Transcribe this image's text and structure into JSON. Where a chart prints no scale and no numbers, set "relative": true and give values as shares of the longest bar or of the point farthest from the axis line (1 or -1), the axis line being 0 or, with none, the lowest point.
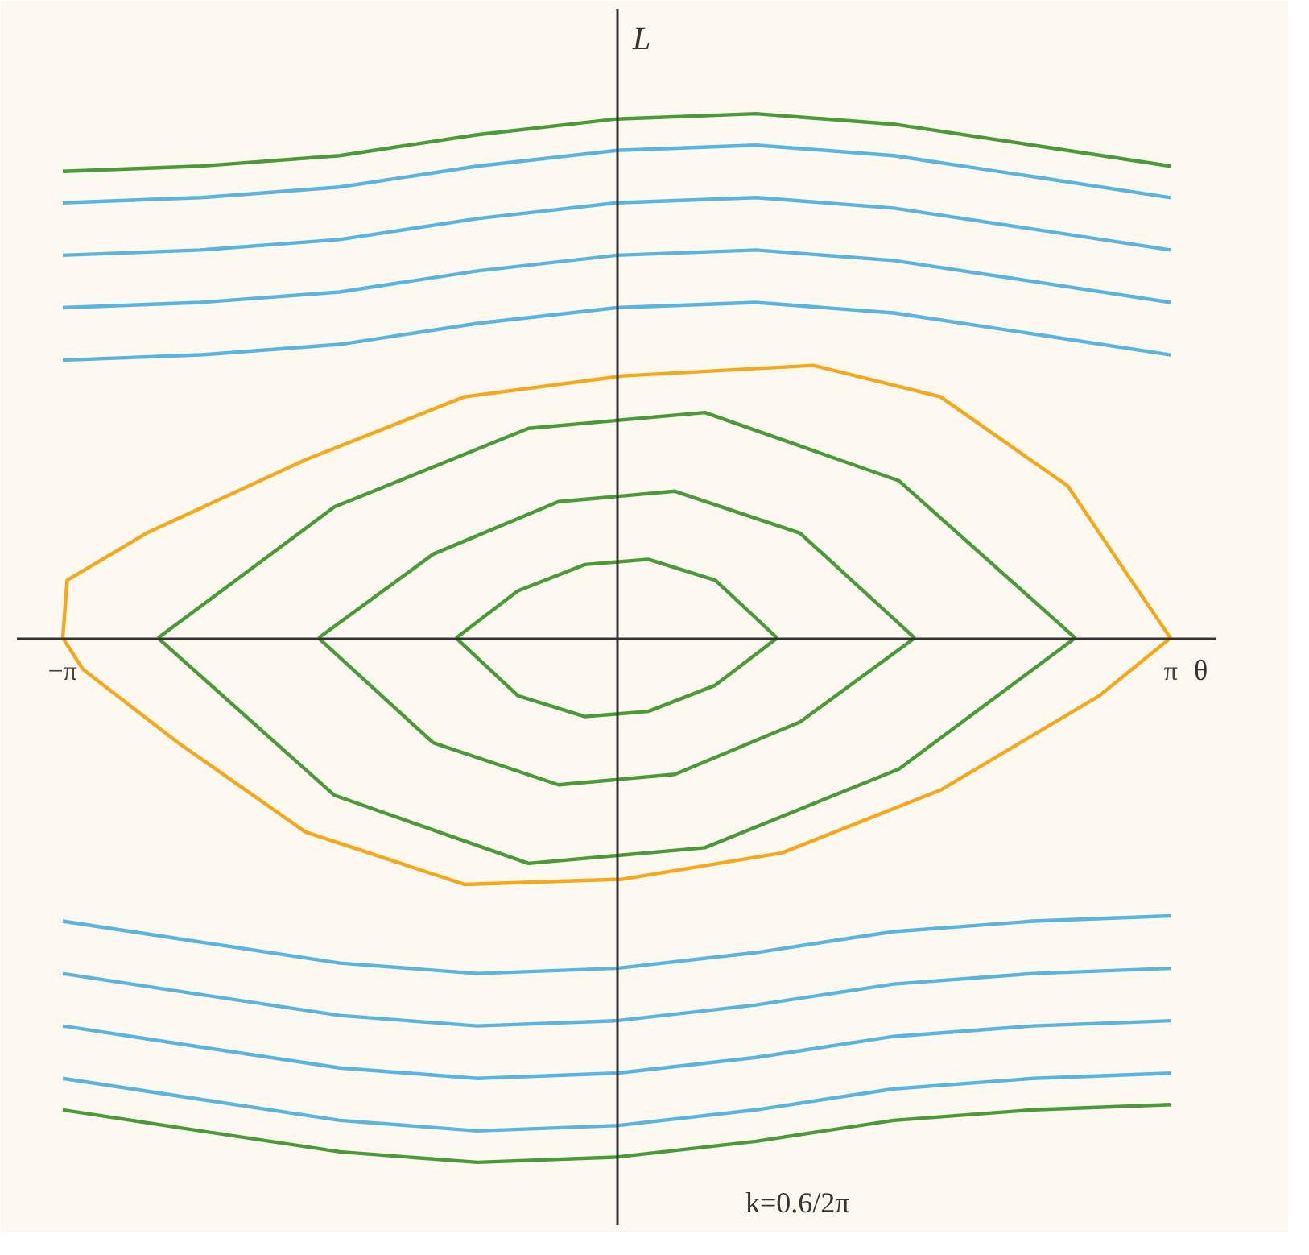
{
  "chart_data": {
    "type": "line",
    "relative": true,
    "xlabel": "θ",
    "ylabel": "L",
    "annotations": [
      "k=0.6/2π"
    ],
    "tick_labels": "x",
    "xlim": [
      -3.4,
      3.4
    ],
    "xticks": [
      {
        "value": -3.1416,
        "label": "−π"
      },
      {
        "value": 3.1416,
        "label": "π"
      }
    ],
    "series": [
      {
        "color": "#5ab4e0",
        "x": [
          -3.14,
          -2.36,
          -1.57,
          -0.79,
          0,
          0.79,
          1.57,
          2.36,
          3.14
        ],
        "values": [
          0.53,
          0.54,
          0.56,
          0.6,
          0.63,
          0.64,
          0.62,
          0.58,
          0.54
        ]
      },
      {
        "color": "#5ab4e0",
        "x": [
          -3.14,
          -2.36,
          -1.57,
          -0.79,
          0,
          0.79,
          1.57,
          2.36,
          3.14
        ],
        "values": [
          0.63,
          0.64,
          0.66,
          0.7,
          0.73,
          0.74,
          0.72,
          0.68,
          0.64
        ]
      },
      {
        "color": "#5ab4e0",
        "x": [
          -3.14,
          -2.36,
          -1.57,
          -0.79,
          0,
          0.79,
          1.57,
          2.36,
          3.14
        ],
        "values": [
          0.73,
          0.74,
          0.76,
          0.8,
          0.83,
          0.84,
          0.82,
          0.78,
          0.74
        ]
      },
      {
        "color": "#5ab4e0",
        "x": [
          -3.14,
          -2.36,
          -1.57,
          -0.79,
          0,
          0.79,
          1.57,
          2.36,
          3.14
        ],
        "values": [
          0.83,
          0.84,
          0.86,
          0.9,
          0.93,
          0.94,
          0.92,
          0.88,
          0.84
        ]
      },
      {
        "color": "#4a9a3a",
        "x": [
          -3.14,
          -2.36,
          -1.57,
          -0.79,
          0,
          0.79,
          1.57,
          2.36,
          3.14
        ],
        "values": [
          0.89,
          0.9,
          0.92,
          0.96,
          0.99,
          1.0,
          0.98,
          0.94,
          0.9
        ]
      },
      {
        "color": "#5ab4e0",
        "x": [
          -3.14,
          -2.36,
          -1.57,
          -0.79,
          0,
          0.79,
          1.57,
          2.36,
          3.14
        ],
        "values": [
          -0.54,
          -0.58,
          -0.62,
          -0.64,
          -0.63,
          -0.6,
          -0.56,
          -0.54,
          -0.53
        ]
      },
      {
        "color": "#5ab4e0",
        "x": [
          -3.14,
          -2.36,
          -1.57,
          -0.79,
          0,
          0.79,
          1.57,
          2.36,
          3.14
        ],
        "values": [
          -0.64,
          -0.68,
          -0.72,
          -0.74,
          -0.73,
          -0.7,
          -0.66,
          -0.64,
          -0.63
        ]
      },
      {
        "color": "#5ab4e0",
        "x": [
          -3.14,
          -2.36,
          -1.57,
          -0.79,
          0,
          0.79,
          1.57,
          2.36,
          3.14
        ],
        "values": [
          -0.74,
          -0.78,
          -0.82,
          -0.84,
          -0.83,
          -0.8,
          -0.76,
          -0.74,
          -0.73
        ]
      },
      {
        "color": "#5ab4e0",
        "x": [
          -3.14,
          -2.36,
          -1.57,
          -0.79,
          0,
          0.79,
          1.57,
          2.36,
          3.14
        ],
        "values": [
          -0.84,
          -0.88,
          -0.92,
          -0.94,
          -0.93,
          -0.9,
          -0.86,
          -0.84,
          -0.83
        ]
      },
      {
        "color": "#4a9a3a",
        "x": [
          -3.14,
          -2.36,
          -1.57,
          -0.79,
          0,
          0.79,
          1.57,
          2.36,
          3.14
        ],
        "values": [
          -0.9,
          -0.94,
          -0.98,
          -1.0,
          -0.99,
          -0.96,
          -0.92,
          -0.9,
          -0.89
        ]
      },
      {
        "color": "#4a9a3a",
        "x": [
          -2.6,
          -1.6,
          -0.5,
          0.5,
          1.6,
          2.6
        ],
        "values": [
          0,
          0.25,
          0.4,
          0.43,
          0.3,
          0
        ]
      },
      {
        "color": "#4a9a3a",
        "x": [
          -2.6,
          -1.6,
          -0.5,
          0.5,
          1.6,
          2.6
        ],
        "values": [
          0,
          -0.3,
          -0.43,
          -0.4,
          -0.25,
          0
        ]
      },
      {
        "color": "#4a9a3a",
        "x": [
          -1.69,
          -1.04,
          -0.33,
          0.33,
          1.04,
          1.69
        ],
        "values": [
          0,
          0.16,
          0.26,
          0.28,
          0.2,
          0
        ]
      },
      {
        "color": "#4a9a3a",
        "x": [
          -1.69,
          -1.04,
          -0.33,
          0.33,
          1.04,
          1.69
        ],
        "values": [
          0,
          -0.2,
          -0.28,
          -0.26,
          -0.16,
          0
        ]
      },
      {
        "color": "#4a9a3a",
        "x": [
          -0.91,
          -0.56,
          -0.18,
          0.18,
          0.56,
          0.91
        ],
        "values": [
          0,
          0.09,
          0.14,
          0.15,
          0.11,
          0
        ]
      },
      {
        "color": "#4a9a3a",
        "x": [
          -0.91,
          -0.56,
          -0.18,
          0.18,
          0.56,
          0.91
        ],
        "values": [
          0,
          -0.11,
          -0.15,
          -0.14,
          -0.09,
          0
        ]
      },
      {
        "color": "#f5a81c",
        "x": [
          -3.14,
          -3.115,
          -2.665,
          -1.764,
          -0.864,
          0.036,
          1.116,
          1.836,
          2.557,
          2.917,
          3.14
        ],
        "values": [
          0,
          0.11,
          0.2,
          0.34,
          0.46,
          0.5,
          0.52,
          0.46,
          0.29,
          0.11,
          0
        ]
      },
      {
        "color": "#f5a81c",
        "x": [
          -3.14,
          -3.025,
          -2.485,
          -1.764,
          -0.864,
          0.036,
          0.936,
          1.836,
          2.737,
          3.14
        ],
        "values": [
          0,
          -0.06,
          -0.2,
          -0.37,
          -0.47,
          -0.46,
          -0.41,
          -0.29,
          -0.11,
          0
        ]
      }
    ]
  }
}
